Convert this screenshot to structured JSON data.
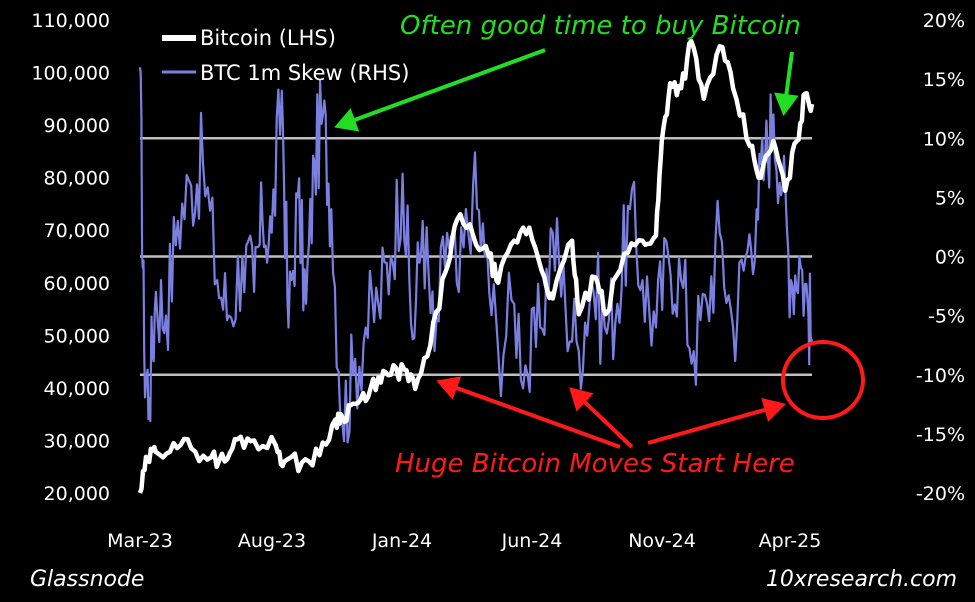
{
  "colors": {
    "background": "#000000",
    "bitcoin": "#ffffff",
    "skew": "#7b7fe0",
    "reference_line": "#bfbfbf",
    "buy_annotation": "#22dd22",
    "moves_annotation": "#ff1a1a"
  },
  "legend": {
    "items": [
      {
        "label": "Bitcoin (LHS)",
        "color": "#ffffff"
      },
      {
        "label": "BTC 1m Skew (RHS)",
        "color": "#7b7fe0"
      }
    ],
    "position": "top-left"
  },
  "annotations": {
    "buy": "Often good time to buy Bitcoin",
    "moves": "Huge Bitcoin Moves Start Here"
  },
  "footer": {
    "source_left": "Glassnode",
    "source_right": "10xresearch.com"
  },
  "chart_data": {
    "type": "line",
    "title": "",
    "x_ticks": [
      "Mar-23",
      "Aug-23",
      "Jan-24",
      "Jun-24",
      "Nov-24",
      "Apr-25"
    ],
    "y_left": {
      "ticks": [
        "110,000",
        "100,000",
        "90,000",
        "80,000",
        "70,000",
        "60,000",
        "50,000",
        "40,000",
        "30,000",
        "20,000"
      ],
      "ylim": [
        20000,
        110000
      ]
    },
    "y_right": {
      "ticks": [
        "20%",
        "15%",
        "10%",
        "5%",
        "0%",
        "-5%",
        "-10%",
        "-15%",
        "-20%"
      ],
      "ylim": [
        -20,
        20
      ]
    },
    "x_range": [
      "2023-03-01",
      "2025-05-10"
    ],
    "reference_lines_pct": [
      10,
      0,
      -10
    ],
    "grid": false,
    "series": [
      {
        "name": "Bitcoin (LHS)",
        "axis": "left",
        "x": [
          "2023-03-01",
          "2023-03-10",
          "2023-03-20",
          "2023-04-10",
          "2023-05-01",
          "2023-05-25",
          "2023-06-10",
          "2023-06-25",
          "2023-07-15",
          "2023-08-10",
          "2023-08-20",
          "2023-09-10",
          "2023-10-01",
          "2023-10-20",
          "2023-10-28",
          "2023-11-10",
          "2023-11-25",
          "2023-12-10",
          "2023-12-25",
          "2024-01-10",
          "2024-01-23",
          "2024-02-10",
          "2024-02-28",
          "2024-03-13",
          "2024-04-01",
          "2024-04-20",
          "2024-05-01",
          "2024-05-20",
          "2024-06-07",
          "2024-06-25",
          "2024-07-05",
          "2024-07-28",
          "2024-08-05",
          "2024-08-25",
          "2024-09-06",
          "2024-09-28",
          "2024-10-20",
          "2024-11-05",
          "2024-11-12",
          "2024-11-22",
          "2024-12-05",
          "2024-12-17",
          "2025-01-01",
          "2025-01-20",
          "2025-02-05",
          "2025-02-25",
          "2025-03-10",
          "2025-03-25",
          "2025-04-08",
          "2025-04-22",
          "2025-05-02",
          "2025-05-10"
        ],
        "values": [
          20000,
          26500,
          27800,
          29500,
          28500,
          26800,
          26000,
          30200,
          30000,
          29000,
          26000,
          25800,
          27200,
          34000,
          34500,
          37000,
          37500,
          42000,
          42500,
          43500,
          39800,
          48000,
          62000,
          72000,
          69000,
          65000,
          60000,
          68000,
          70500,
          61000,
          57000,
          68000,
          54000,
          61000,
          54000,
          65500,
          68000,
          69000,
          87000,
          98000,
          97000,
          106000,
          95000,
          105000,
          97000,
          86000,
          80000,
          87000,
          77500,
          87000,
          96000,
          94000
        ]
      },
      {
        "name": "BTC 1m Skew (RHS)",
        "axis": "right",
        "x": [
          "2023-03-01",
          "2023-03-06",
          "2023-03-12",
          "2023-03-20",
          "2023-04-01",
          "2023-04-15",
          "2023-05-01",
          "2023-05-15",
          "2023-06-01",
          "2023-06-15",
          "2023-07-01",
          "2023-07-15",
          "2023-07-25",
          "2023-08-05",
          "2023-08-17",
          "2023-08-25",
          "2023-09-05",
          "2023-09-15",
          "2023-09-25",
          "2023-10-05",
          "2023-10-15",
          "2023-10-28",
          "2023-11-10",
          "2023-11-25",
          "2023-12-10",
          "2023-12-25",
          "2024-01-08",
          "2024-01-20",
          "2024-02-01",
          "2024-02-15",
          "2024-03-01",
          "2024-03-15",
          "2024-04-01",
          "2024-04-15",
          "2024-05-01",
          "2024-05-20",
          "2024-06-05",
          "2024-06-20",
          "2024-07-05",
          "2024-07-20",
          "2024-08-05",
          "2024-08-20",
          "2024-09-05",
          "2024-09-20",
          "2024-10-05",
          "2024-10-20",
          "2024-11-05",
          "2024-11-20",
          "2024-12-05",
          "2024-12-20",
          "2025-01-05",
          "2025-01-20",
          "2025-02-05",
          "2025-02-20",
          "2025-03-05",
          "2025-03-15",
          "2025-03-25",
          "2025-04-05",
          "2025-04-15",
          "2025-04-25",
          "2025-05-05",
          "2025-05-10"
        ],
        "values": [
          16,
          -8,
          -12,
          -3,
          -5,
          3,
          6,
          8,
          -2,
          -5,
          0,
          -3,
          3,
          2,
          14,
          -6,
          5,
          -4,
          8,
          12,
          4,
          -14,
          -10,
          -6,
          -4,
          0,
          7,
          -7,
          3,
          -8,
          2,
          -3,
          6,
          0,
          -8,
          -4,
          -10,
          -6,
          2,
          -4,
          -8,
          -2,
          -6,
          -4,
          4,
          -2,
          -6,
          0,
          -2,
          -8,
          -4,
          2,
          -6,
          0,
          4,
          8,
          12,
          6,
          -2,
          0,
          -4,
          -7
        ]
      }
    ]
  }
}
